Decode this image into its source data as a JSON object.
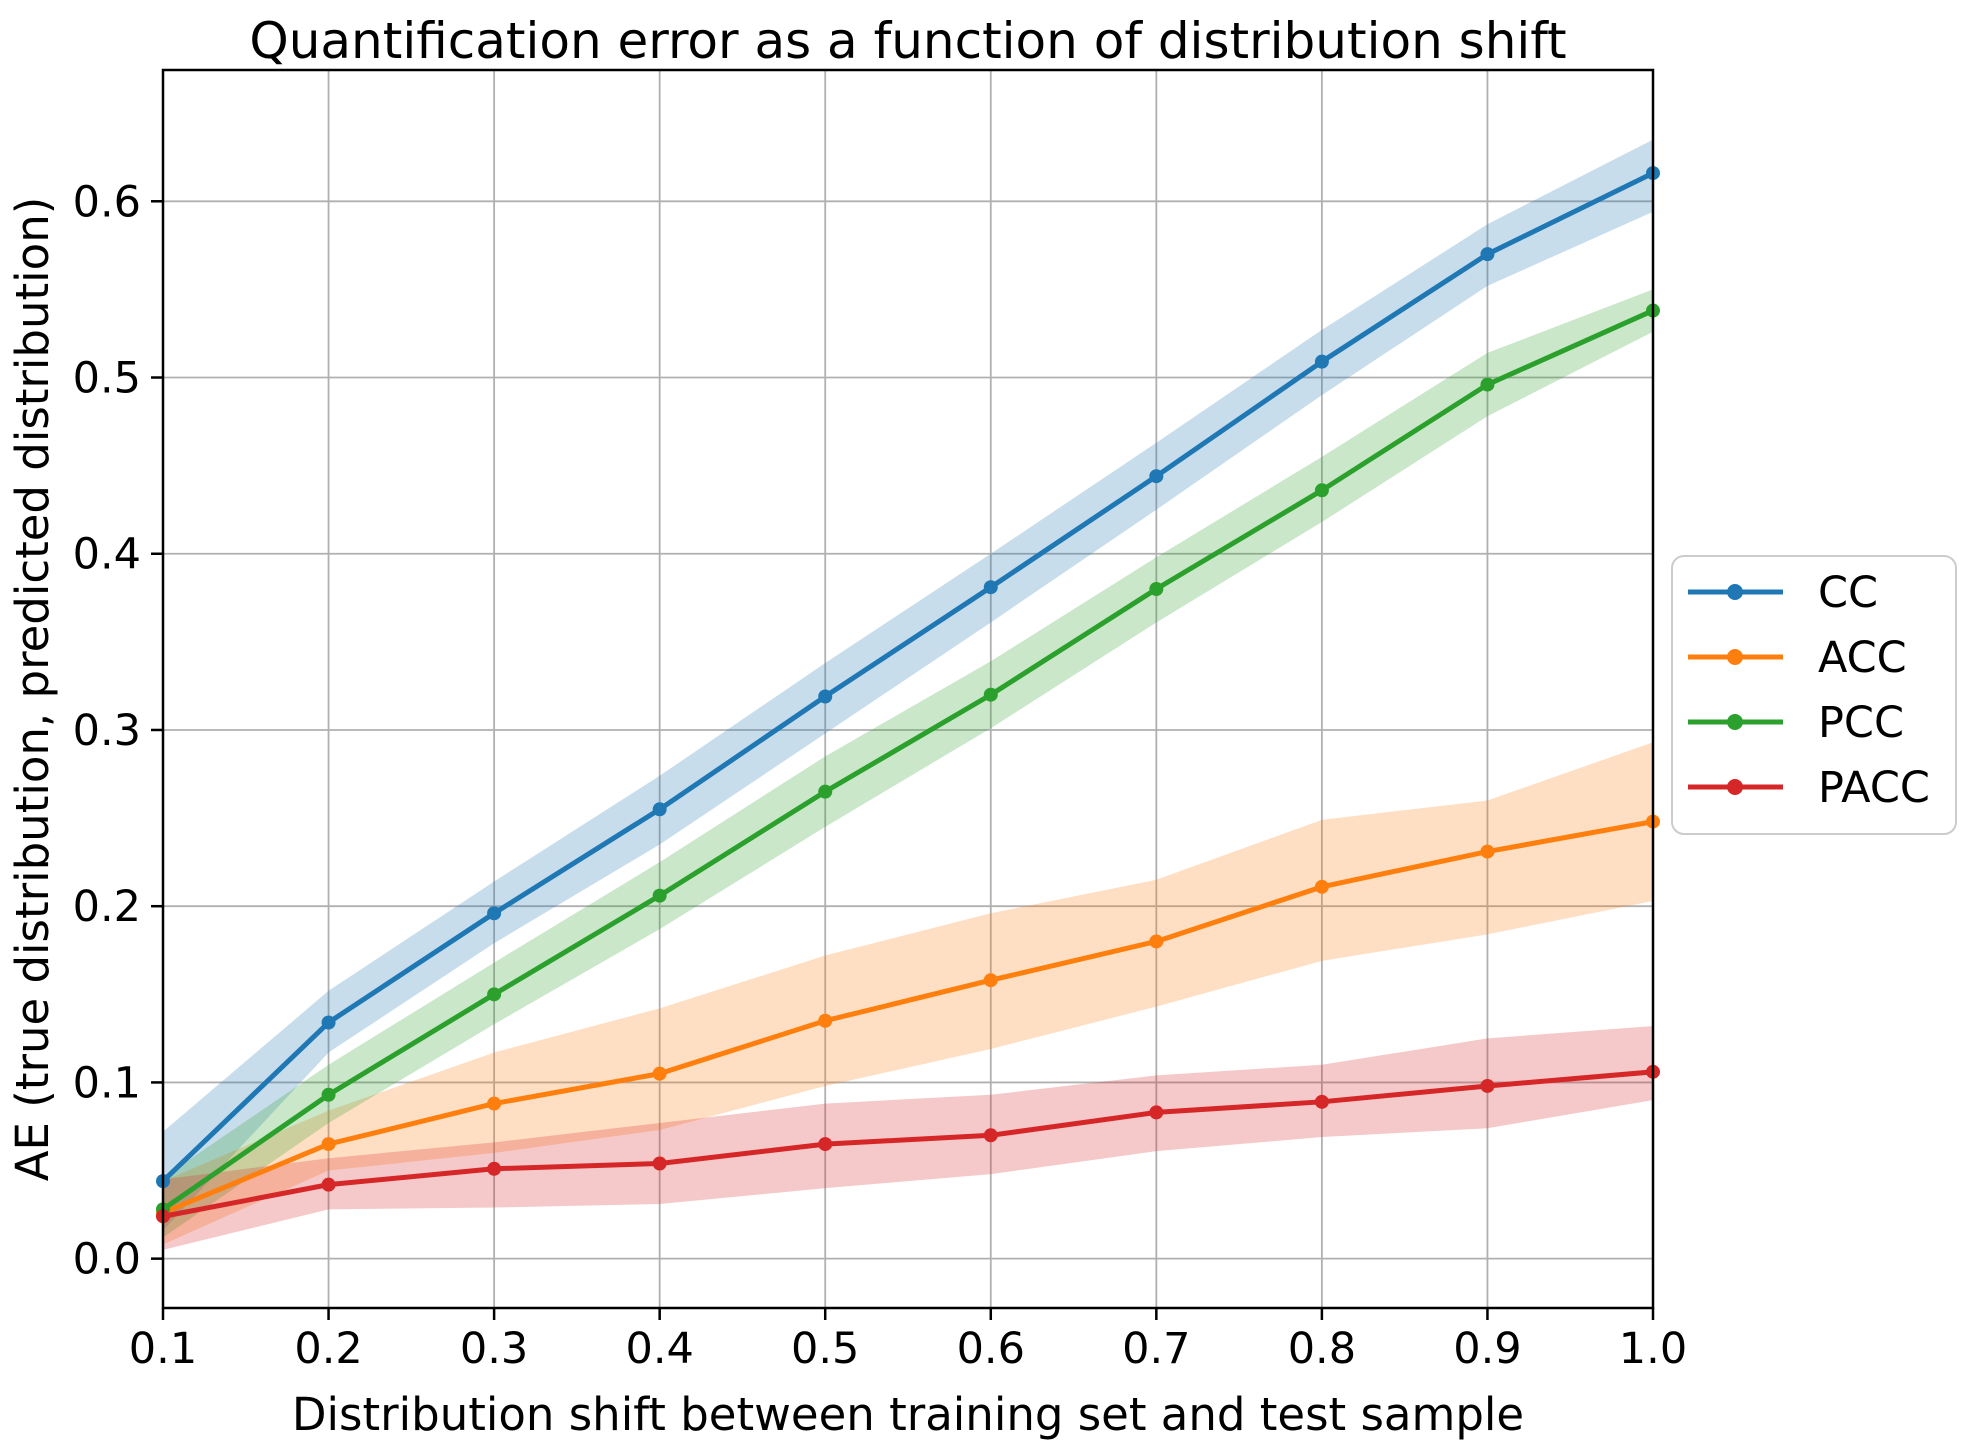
{
  "chart_data": {
    "type": "line",
    "title": "Quantification error as a function of distribution shift",
    "xlabel": "Distribution shift between training set and test sample",
    "ylabel": "AE (true distribution, predicted distribution)",
    "x": [
      0.1,
      0.2,
      0.3,
      0.4,
      0.5,
      0.6,
      0.7,
      0.8,
      0.9,
      1.0
    ],
    "x_tick_labels": [
      "0.1",
      "0.2",
      "0.3",
      "0.4",
      "0.5",
      "0.6",
      "0.7",
      "0.8",
      "0.9",
      "1.0"
    ],
    "y_ticks": [
      0.0,
      0.1,
      0.2,
      0.3,
      0.4,
      0.5,
      0.6
    ],
    "y_tick_labels": [
      "0.0",
      "0.1",
      "0.2",
      "0.3",
      "0.4",
      "0.5",
      "0.6"
    ],
    "xlim": [
      0.1,
      1.0
    ],
    "ylim": [
      -0.028,
      0.6745
    ],
    "grid": true,
    "grid_color": "#b0b0b0",
    "spine_color": "#000000",
    "background_color": "#ffffff",
    "band_opacity": 0.25,
    "legend_position": "right-outside",
    "series": [
      {
        "name": "CC",
        "color": "#1f77b4",
        "values": [
          0.044,
          0.134,
          0.196,
          0.255,
          0.319,
          0.381,
          0.444,
          0.509,
          0.57,
          0.616
        ],
        "band_lower": [
          0.016,
          0.117,
          0.179,
          0.235,
          0.298,
          0.361,
          0.425,
          0.49,
          0.552,
          0.594
        ],
        "band_upper": [
          0.072,
          0.152,
          0.214,
          0.274,
          0.338,
          0.4,
          0.463,
          0.527,
          0.587,
          0.635
        ]
      },
      {
        "name": "ACC",
        "color": "#ff7f0e",
        "values": [
          0.026,
          0.065,
          0.088,
          0.105,
          0.135,
          0.158,
          0.18,
          0.211,
          0.231,
          0.248
        ],
        "band_lower": [
          0.008,
          0.05,
          0.06,
          0.073,
          0.098,
          0.119,
          0.143,
          0.169,
          0.184,
          0.203
        ],
        "band_upper": [
          0.044,
          0.084,
          0.117,
          0.142,
          0.172,
          0.196,
          0.215,
          0.249,
          0.26,
          0.293
        ]
      },
      {
        "name": "PCC",
        "color": "#2ca02c",
        "values": [
          0.028,
          0.093,
          0.15,
          0.206,
          0.265,
          0.32,
          0.38,
          0.436,
          0.496,
          0.538
        ],
        "band_lower": [
          0.012,
          0.077,
          0.133,
          0.187,
          0.245,
          0.301,
          0.361,
          0.418,
          0.478,
          0.526
        ],
        "band_upper": [
          0.046,
          0.11,
          0.168,
          0.225,
          0.285,
          0.339,
          0.398,
          0.455,
          0.514,
          0.55
        ]
      },
      {
        "name": "PACC",
        "color": "#d62728",
        "values": [
          0.024,
          0.042,
          0.051,
          0.054,
          0.065,
          0.07,
          0.083,
          0.089,
          0.098,
          0.106
        ],
        "band_lower": [
          0.005,
          0.028,
          0.029,
          0.031,
          0.04,
          0.048,
          0.061,
          0.069,
          0.074,
          0.09
        ],
        "band_upper": [
          0.045,
          0.057,
          0.066,
          0.077,
          0.088,
          0.093,
          0.104,
          0.11,
          0.125,
          0.132
        ]
      }
    ]
  }
}
